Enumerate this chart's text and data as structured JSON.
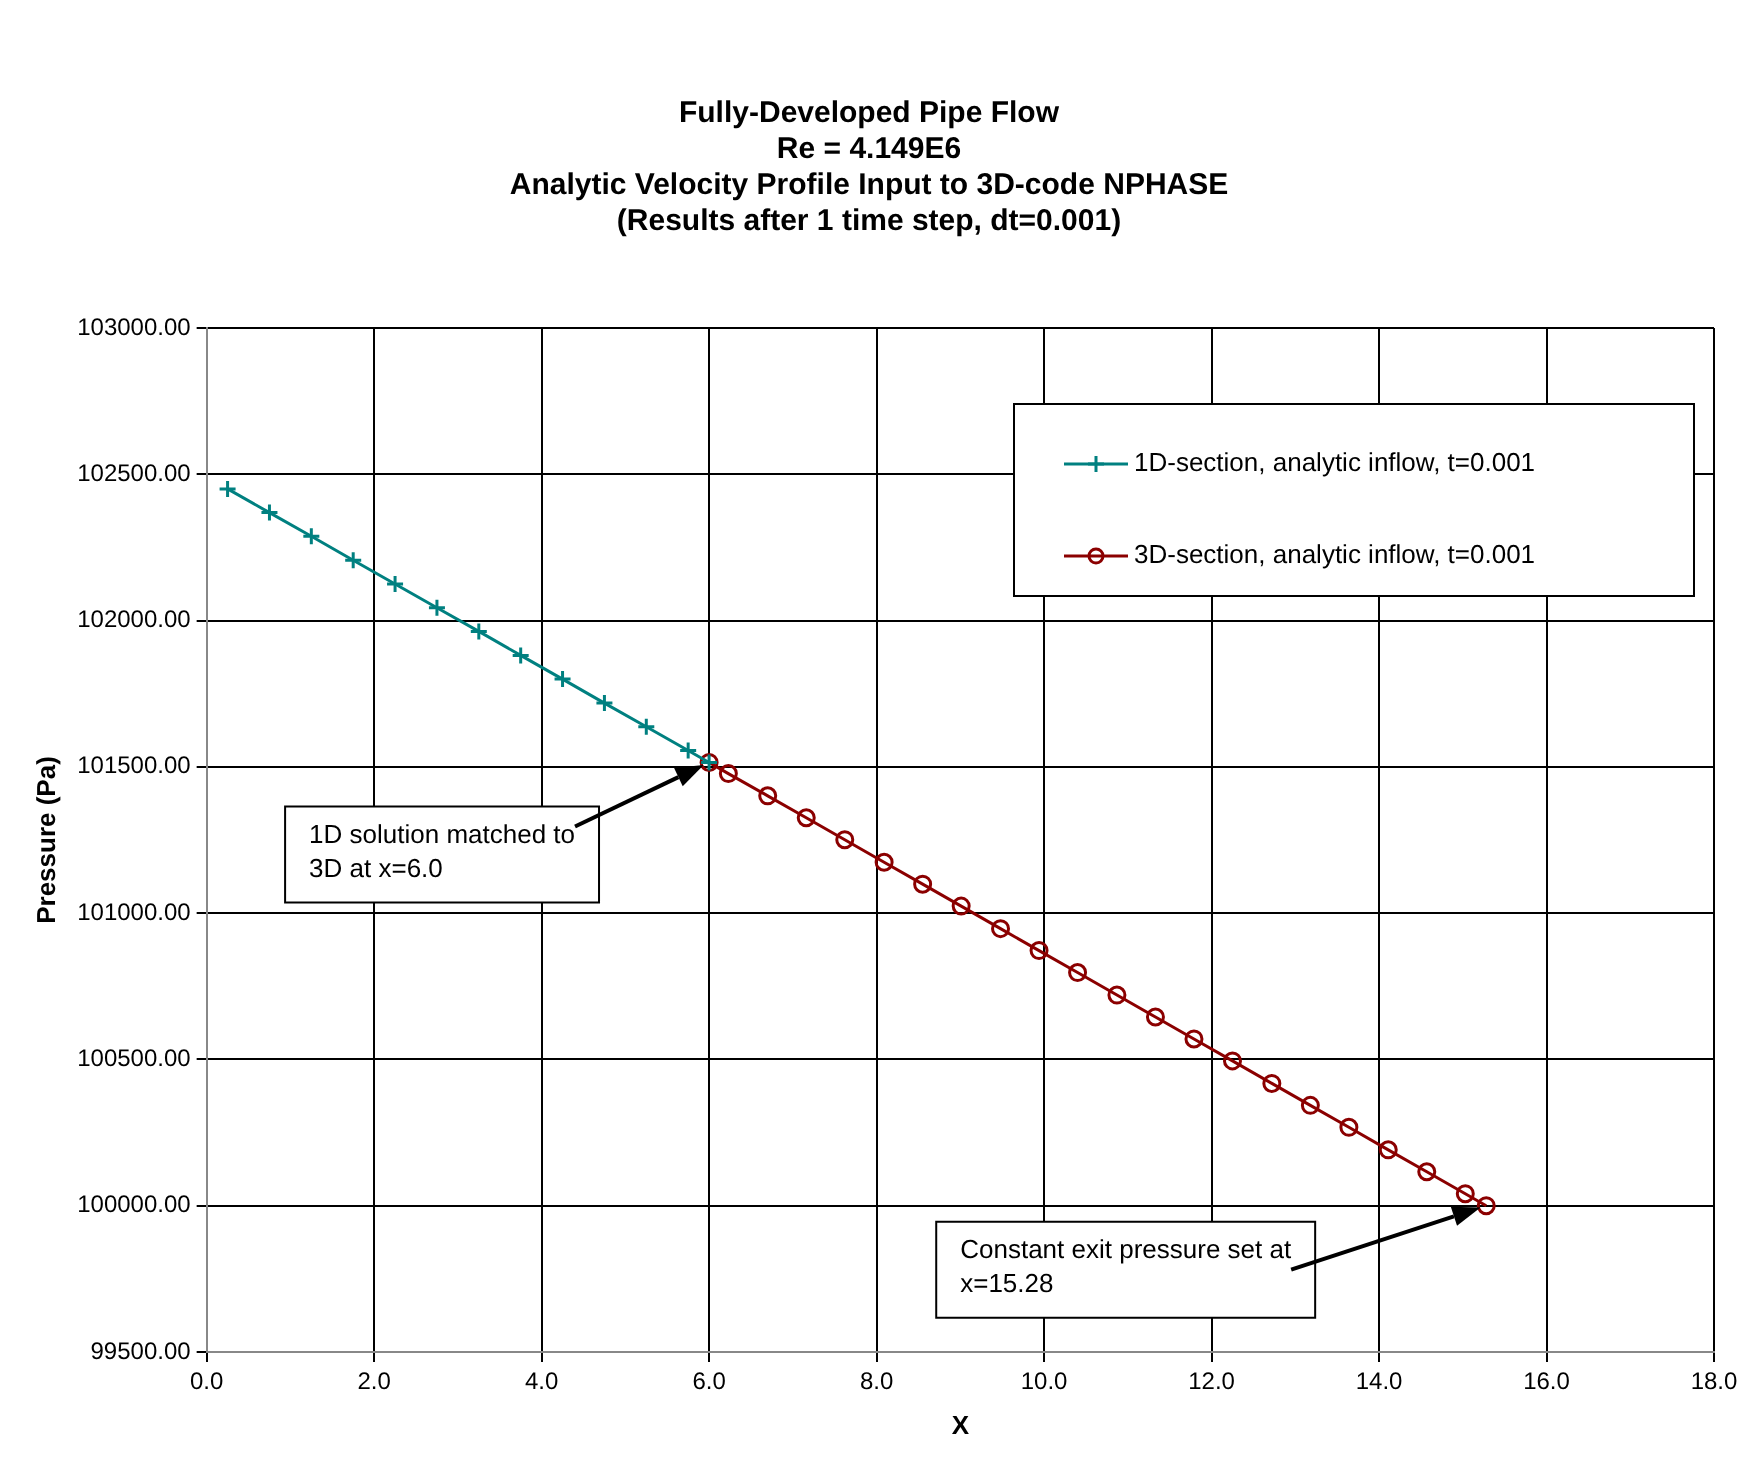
{
  "chart_data": {
    "type": "line",
    "title": "Fully-Developed Pipe Flow",
    "subtitle": "Re = 4.149E6\nAnalytic Velocity Profile Input to 3D-code NPHASE\n(Results after 1 time step, dt=0.001)",
    "xlabel": "X",
    "ylabel": "Pressure (Pa)",
    "xlim": [
      0,
      18
    ],
    "xticks": [
      {
        "value": 0,
        "label": "0.0"
      },
      {
        "value": 2,
        "label": "2.0"
      },
      {
        "value": 4,
        "label": "4.0"
      },
      {
        "value": 6,
        "label": "6.0"
      },
      {
        "value": 8,
        "label": "8.0"
      },
      {
        "value": 10,
        "label": "10.0"
      },
      {
        "value": 12,
        "label": "12.0"
      },
      {
        "value": 14,
        "label": "14.0"
      },
      {
        "value": 16,
        "label": "16.0"
      },
      {
        "value": 18,
        "label": "18.0"
      }
    ],
    "ylim": [
      99500,
      103000
    ],
    "yticks": [
      {
        "value": 99500,
        "label": "99500.00"
      },
      {
        "value": 100000,
        "label": "100000.00"
      },
      {
        "value": 100500,
        "label": "100500.00"
      },
      {
        "value": 101000,
        "label": "101000.00"
      },
      {
        "value": 101500,
        "label": "101500.00"
      },
      {
        "value": 102000,
        "label": "102000.00"
      },
      {
        "value": 102500,
        "label": "102500.00"
      },
      {
        "value": 103000,
        "label": "103000.00"
      }
    ],
    "grid": true,
    "legend": "top right",
    "line_style": "solid",
    "series": [
      {
        "name": "1D-section, analytic inflow, t=0.001",
        "color": "#008080",
        "marker": "cross",
        "x": [
          0.25,
          0.75,
          1.25,
          1.75,
          2.25,
          2.75,
          3.25,
          3.75,
          4.25,
          4.75,
          5.25,
          5.75,
          6.0
        ],
        "values": [
          102450,
          102369,
          102288,
          102206,
          102125,
          102044,
          101963,
          101881,
          101800,
          101718,
          101637,
          101556,
          101515
        ]
      },
      {
        "name": "3D-section, analytic inflow, t=0.001",
        "color": "#8b0000",
        "marker": "circle",
        "x": [
          6.0,
          6.23,
          6.7,
          7.16,
          7.62,
          8.09,
          8.55,
          9.01,
          9.48,
          9.94,
          10.4,
          10.87,
          11.33,
          11.79,
          12.25,
          12.72,
          13.18,
          13.64,
          14.11,
          14.57,
          15.03,
          15.28
        ],
        "values": [
          101515,
          101477,
          101401,
          101326,
          101251,
          101174,
          101099,
          101024,
          100947,
          100872,
          100797,
          100720,
          100645,
          100570,
          100495,
          100418,
          100343,
          100268,
          100191,
          100116,
          100041,
          100000
        ]
      }
    ],
    "annotations": [
      "1D solution matched to\n3D at x=6.0",
      "Constant exit pressure set at\nx=15.28"
    ]
  }
}
